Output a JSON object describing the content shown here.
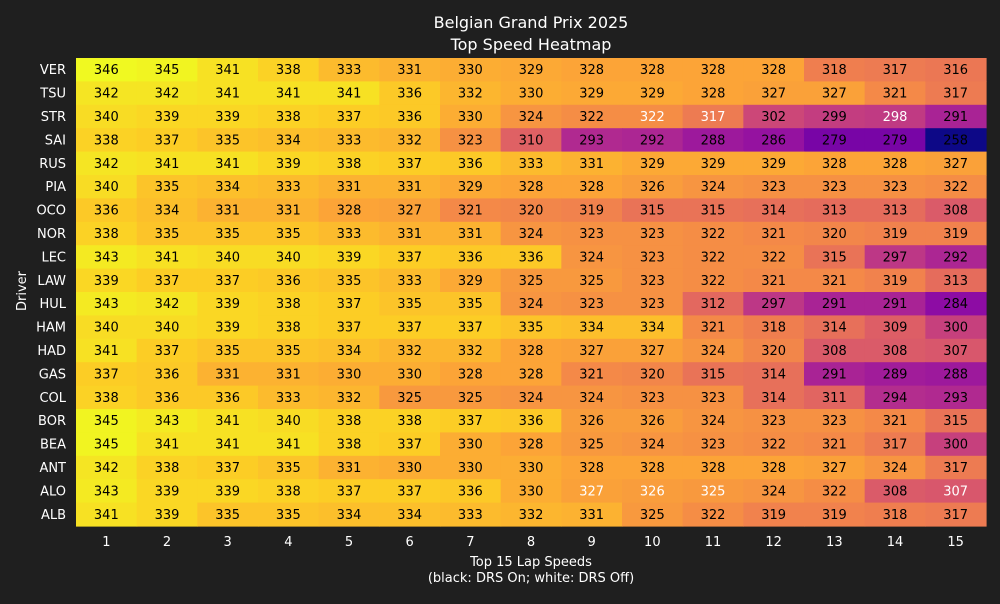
{
  "chart_data": {
    "type": "heatmap",
    "title": "Belgian Grand Prix 2025",
    "subtitle": "Top Speed Heatmap",
    "xlabel": "Top 15 Lap Speeds",
    "xlabel_note": "(black: DRS On; white: DRS Off)",
    "ylabel": "Driver",
    "colormap": "plasma",
    "background": "#1f1f1f",
    "color_range": [
      258,
      346
    ],
    "x": [
      1,
      2,
      3,
      4,
      5,
      6,
      7,
      8,
      9,
      10,
      11,
      12,
      13,
      14,
      15
    ],
    "drivers": [
      "VER",
      "TSU",
      "STR",
      "SAI",
      "RUS",
      "PIA",
      "OCO",
      "NOR",
      "LEC",
      "LAW",
      "HUL",
      "HAM",
      "HAD",
      "GAS",
      "COL",
      "BOR",
      "BEA",
      "ANT",
      "ALO",
      "ALB"
    ],
    "values": [
      [
        346,
        345,
        341,
        338,
        333,
        331,
        330,
        329,
        328,
        328,
        328,
        328,
        318,
        317,
        316
      ],
      [
        342,
        342,
        341,
        341,
        341,
        336,
        332,
        330,
        329,
        329,
        328,
        327,
        327,
        321,
        317
      ],
      [
        340,
        339,
        339,
        338,
        337,
        336,
        330,
        324,
        322,
        322,
        317,
        302,
        299,
        298,
        291
      ],
      [
        338,
        337,
        335,
        334,
        333,
        332,
        323,
        310,
        293,
        292,
        288,
        286,
        279,
        279,
        258
      ],
      [
        342,
        341,
        341,
        339,
        338,
        337,
        336,
        333,
        331,
        329,
        329,
        329,
        328,
        328,
        327
      ],
      [
        340,
        335,
        334,
        333,
        331,
        331,
        329,
        328,
        328,
        326,
        324,
        323,
        323,
        323,
        322
      ],
      [
        336,
        334,
        331,
        331,
        328,
        327,
        321,
        320,
        319,
        315,
        315,
        314,
        313,
        313,
        308
      ],
      [
        338,
        335,
        335,
        335,
        333,
        331,
        331,
        324,
        323,
        323,
        322,
        321,
        320,
        319,
        319
      ],
      [
        343,
        341,
        340,
        340,
        339,
        337,
        336,
        336,
        324,
        323,
        322,
        322,
        315,
        297,
        292
      ],
      [
        339,
        337,
        337,
        336,
        335,
        333,
        329,
        325,
        325,
        323,
        322,
        321,
        321,
        319,
        313
      ],
      [
        343,
        342,
        339,
        338,
        337,
        335,
        335,
        324,
        323,
        323,
        312,
        297,
        291,
        291,
        284
      ],
      [
        340,
        340,
        339,
        338,
        337,
        337,
        337,
        335,
        334,
        334,
        321,
        318,
        314,
        309,
        300
      ],
      [
        341,
        337,
        335,
        335,
        334,
        332,
        332,
        328,
        327,
        327,
        324,
        320,
        308,
        308,
        307
      ],
      [
        337,
        336,
        331,
        331,
        330,
        330,
        328,
        328,
        321,
        320,
        315,
        314,
        291,
        289,
        288
      ],
      [
        338,
        336,
        336,
        333,
        332,
        325,
        325,
        324,
        324,
        323,
        323,
        314,
        311,
        294,
        293
      ],
      [
        345,
        343,
        341,
        340,
        338,
        338,
        337,
        336,
        326,
        326,
        324,
        323,
        323,
        321,
        315
      ],
      [
        345,
        341,
        341,
        341,
        338,
        337,
        330,
        328,
        325,
        324,
        323,
        322,
        321,
        317,
        300
      ],
      [
        342,
        338,
        337,
        335,
        331,
        330,
        330,
        330,
        328,
        328,
        328,
        328,
        327,
        324,
        317
      ],
      [
        343,
        339,
        339,
        338,
        337,
        337,
        336,
        330,
        327,
        326,
        325,
        324,
        322,
        308,
        307
      ],
      [
        341,
        339,
        335,
        335,
        334,
        334,
        333,
        332,
        331,
        325,
        322,
        319,
        319,
        318,
        317
      ]
    ],
    "drs_off": [
      [
        2,
        10
      ],
      [
        2,
        11
      ],
      [
        2,
        14
      ],
      [
        18,
        9
      ],
      [
        18,
        10
      ],
      [
        18,
        11
      ],
      [
        18,
        15
      ]
    ]
  }
}
